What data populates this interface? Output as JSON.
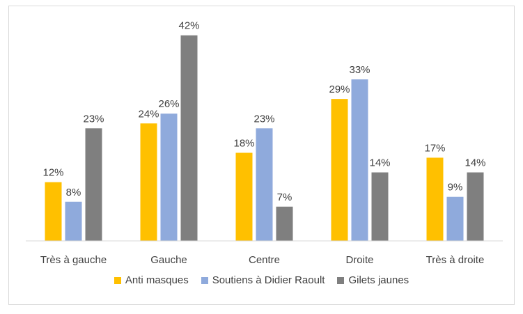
{
  "chart_data": {
    "type": "bar",
    "categories": [
      "Très à gauche",
      "Gauche",
      "Centre",
      "Droite",
      "Très à droite"
    ],
    "series": [
      {
        "name": "Anti masques",
        "color": "#FFC000",
        "values": [
          12,
          24,
          18,
          29,
          17
        ]
      },
      {
        "name": "Soutiens à Didier Raoult",
        "color": "#8FAADC",
        "values": [
          8,
          26,
          23,
          33,
          9
        ]
      },
      {
        "name": "Gilets jaunes",
        "color": "#7F7F7F",
        "values": [
          23,
          42,
          7,
          14,
          14
        ]
      }
    ],
    "value_suffix": "%",
    "ylim": [
      0,
      45
    ],
    "grid": false,
    "legend_position": "bottom",
    "title": "",
    "xlabel": "",
    "ylabel": ""
  }
}
